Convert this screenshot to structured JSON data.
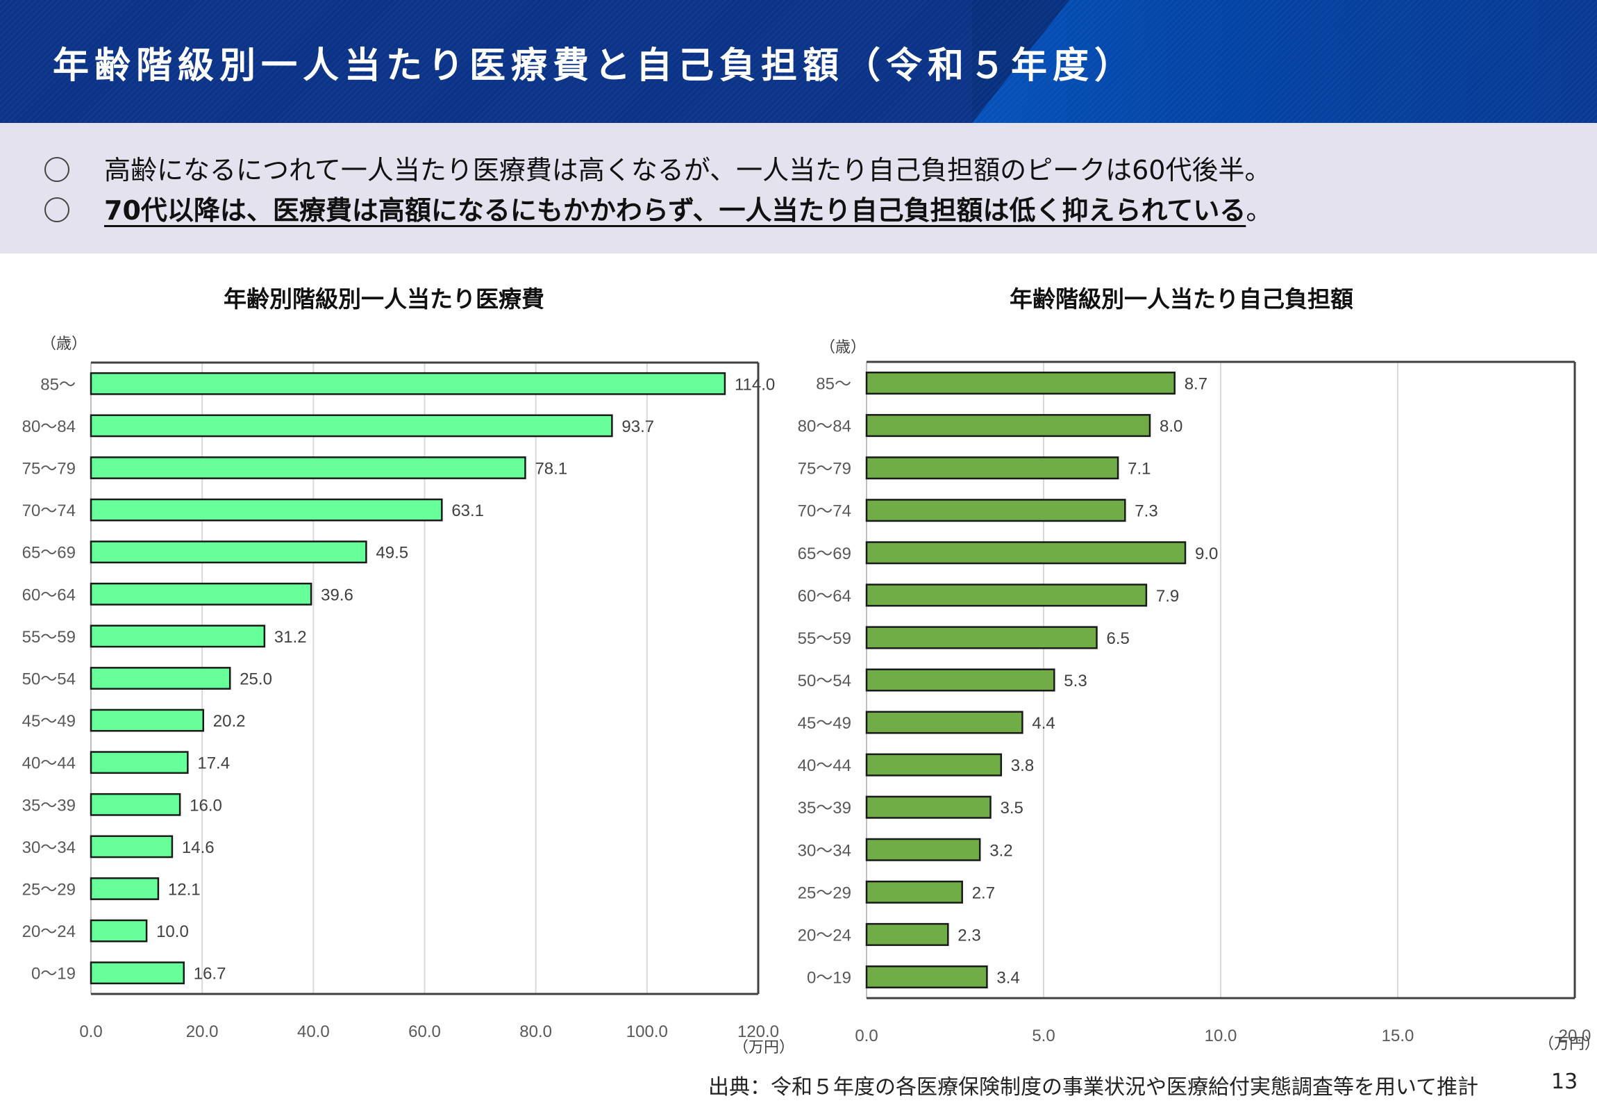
{
  "header": {
    "title": "年齢階級別一人当たり医療費と自己負担額（令和５年度）"
  },
  "summary": {
    "bullet_icon": "circle-bullet-icon",
    "bullets": [
      {
        "text": "高齢になるにつれて一人当たり医療費は高くなるが、一人当たり自己負担額のピークは60代後半。",
        "emphasis": false
      },
      {
        "text": "70代以降は、医療費は高額になるにもかかわらず、一人当たり自己負担額は低く抑えられている",
        "tail": "。",
        "emphasis": true
      }
    ]
  },
  "chart_data": [
    {
      "type": "bar",
      "orientation": "horizontal",
      "title": "年齢別階級別一人当たり医療費",
      "ylabel": "（歳）",
      "xlabel": "（万円）",
      "xlim": [
        0,
        120
      ],
      "xticks": [
        "0.0",
        "20.0",
        "40.0",
        "60.0",
        "80.0",
        "100.0",
        "120.0"
      ],
      "xtick_values": [
        0,
        20,
        40,
        60,
        80,
        100,
        120
      ],
      "grid": true,
      "bar_color": "#66ff99",
      "categories": [
        "85〜",
        "80〜84",
        "75〜79",
        "70〜74",
        "65〜69",
        "60〜64",
        "55〜59",
        "50〜54",
        "45〜49",
        "40〜44",
        "35〜39",
        "30〜34",
        "25〜29",
        "20〜24",
        "0〜19"
      ],
      "values": [
        114.0,
        93.7,
        78.1,
        63.1,
        49.5,
        39.6,
        31.2,
        25.0,
        20.2,
        17.4,
        16.0,
        14.6,
        12.1,
        10.0,
        16.7
      ],
      "labels": [
        "114.0",
        "93.7",
        "78.1",
        "63.1",
        "49.5",
        "39.6",
        "31.2",
        "25.0",
        "20.2",
        "17.4",
        "16.0",
        "14.6",
        "12.1",
        "10.0",
        "16.7"
      ]
    },
    {
      "type": "bar",
      "orientation": "horizontal",
      "title": "年齢階級別一人当たり自己負担額",
      "ylabel": "（歳）",
      "xlabel": "（万円）",
      "xlim": [
        0,
        20
      ],
      "xticks": [
        "0.0",
        "5.0",
        "10.0",
        "15.0",
        "20.0"
      ],
      "xtick_values": [
        0,
        5,
        10,
        15,
        20
      ],
      "grid": true,
      "bar_color": "#70ad47",
      "categories": [
        "85〜",
        "80〜84",
        "75〜79",
        "70〜74",
        "65〜69",
        "60〜64",
        "55〜59",
        "50〜54",
        "45〜49",
        "40〜44",
        "35〜39",
        "30〜34",
        "25〜29",
        "20〜24",
        "0〜19"
      ],
      "values": [
        8.7,
        8.0,
        7.1,
        7.3,
        9.0,
        7.9,
        6.5,
        5.3,
        4.4,
        3.8,
        3.5,
        3.2,
        2.7,
        2.3,
        3.4
      ],
      "labels": [
        "8.7",
        "8.0",
        "7.1",
        "7.3",
        "9.0",
        "7.9",
        "6.5",
        "5.3",
        "4.4",
        "3.8",
        "3.5",
        "3.2",
        "2.7",
        "2.3",
        "3.4"
      ]
    }
  ],
  "footer": {
    "source": "出典：令和５年度の各医療保険制度の事業状況や医療給付実態調査等を用いて推計",
    "page_number": "13"
  }
}
